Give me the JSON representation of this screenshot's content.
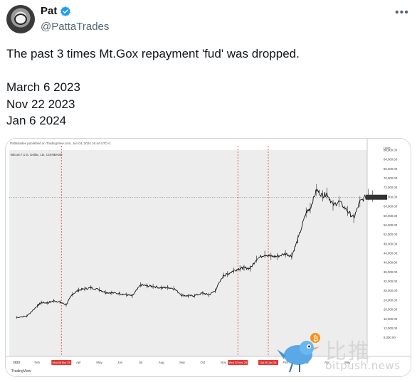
{
  "author": {
    "display_name": "Pat",
    "handle": "@PattaTrades",
    "verified_icon": "verified-badge-icon",
    "more_icon": "more-options-icon"
  },
  "tweet": {
    "line1": "The past 3 times Mt.Gox repayment 'fud' was dropped.",
    "line2": "March 6 2023",
    "line3": "Nov 22 2023",
    "line4": "Jan 6 2024"
  },
  "chart_data": {
    "type": "line",
    "top_note": "Pattatrades published on TradingView.com, Jun 04, 2024 16:44 UTC+1",
    "symbol": "Bitcoin / U.S. Dollar, 1D, COINBASE",
    "currency": "USD",
    "footer": "TradingView",
    "ylim": [
      0,
      88000
    ],
    "y_ticks": [
      "88,000.00",
      "84,000.00",
      "80,000.00",
      "76,000.00",
      "72,000.00",
      "68,000.00",
      "64,000.00",
      "60,000.00",
      "56,000.00",
      "52,000.00",
      "48,000.00",
      "44,000.00",
      "40,000.00",
      "36,000.00",
      "32,000.00",
      "28,000.00",
      "24,000.00",
      "20,000.00",
      "16,000.00",
      "12,000.00",
      "8,000.00"
    ],
    "x_ticks": [
      "2023",
      "Feb",
      "Mar",
      "Apr",
      "May",
      "Jun",
      "Jul",
      "Aug",
      "Sep",
      "Oct",
      "Nov",
      "Dec",
      "2024",
      "Feb",
      "Mar",
      "Apr",
      "May",
      "Jun"
    ],
    "markers": [
      {
        "label": "Mon 06 Mar '23",
        "month_index": 2.17
      },
      {
        "label": "Wed 22 Nov '23",
        "month_index": 10.7
      },
      {
        "label": "Sat 06 Jan '24",
        "month_index": 12.17
      }
    ],
    "current_price": 67900,
    "series": [
      {
        "x": [
          0,
          0.5,
          1,
          1.2,
          1.5,
          1.8,
          2.1,
          2.4,
          2.7,
          3,
          3.3,
          3.6,
          4,
          4.3,
          4.6,
          5,
          5.3,
          5.6,
          6,
          6.3,
          6.6,
          7,
          7.3,
          7.6,
          8,
          8.3,
          8.6,
          9,
          9.3,
          9.6,
          10,
          10.2,
          10.5,
          10.8,
          11,
          11.3,
          11.6,
          12,
          12.3,
          12.6,
          13,
          13.3,
          13.6,
          14,
          14.2,
          14.5,
          14.8,
          15,
          15.3,
          15.6,
          16,
          16.3,
          16.6,
          17,
          17.2
        ],
        "values": [
          16600,
          17200,
          21500,
          23000,
          22800,
          23700,
          23200,
          22000,
          26500,
          28300,
          28800,
          29300,
          28500,
          27300,
          27100,
          26800,
          26300,
          25800,
          30500,
          30100,
          29900,
          29200,
          29400,
          29000,
          26100,
          25800,
          25900,
          27000,
          26200,
          28000,
          34500,
          35100,
          36600,
          37500,
          37800,
          37500,
          41500,
          43500,
          42700,
          42600,
          43800,
          42800,
          49900,
          61400,
          63200,
          71000,
          68500,
          69500,
          64500,
          66000,
          62000,
          59000,
          66000,
          69000,
          68400
        ]
      }
    ]
  },
  "watermark": {
    "text": "比推",
    "sub": "bitpush.news"
  }
}
